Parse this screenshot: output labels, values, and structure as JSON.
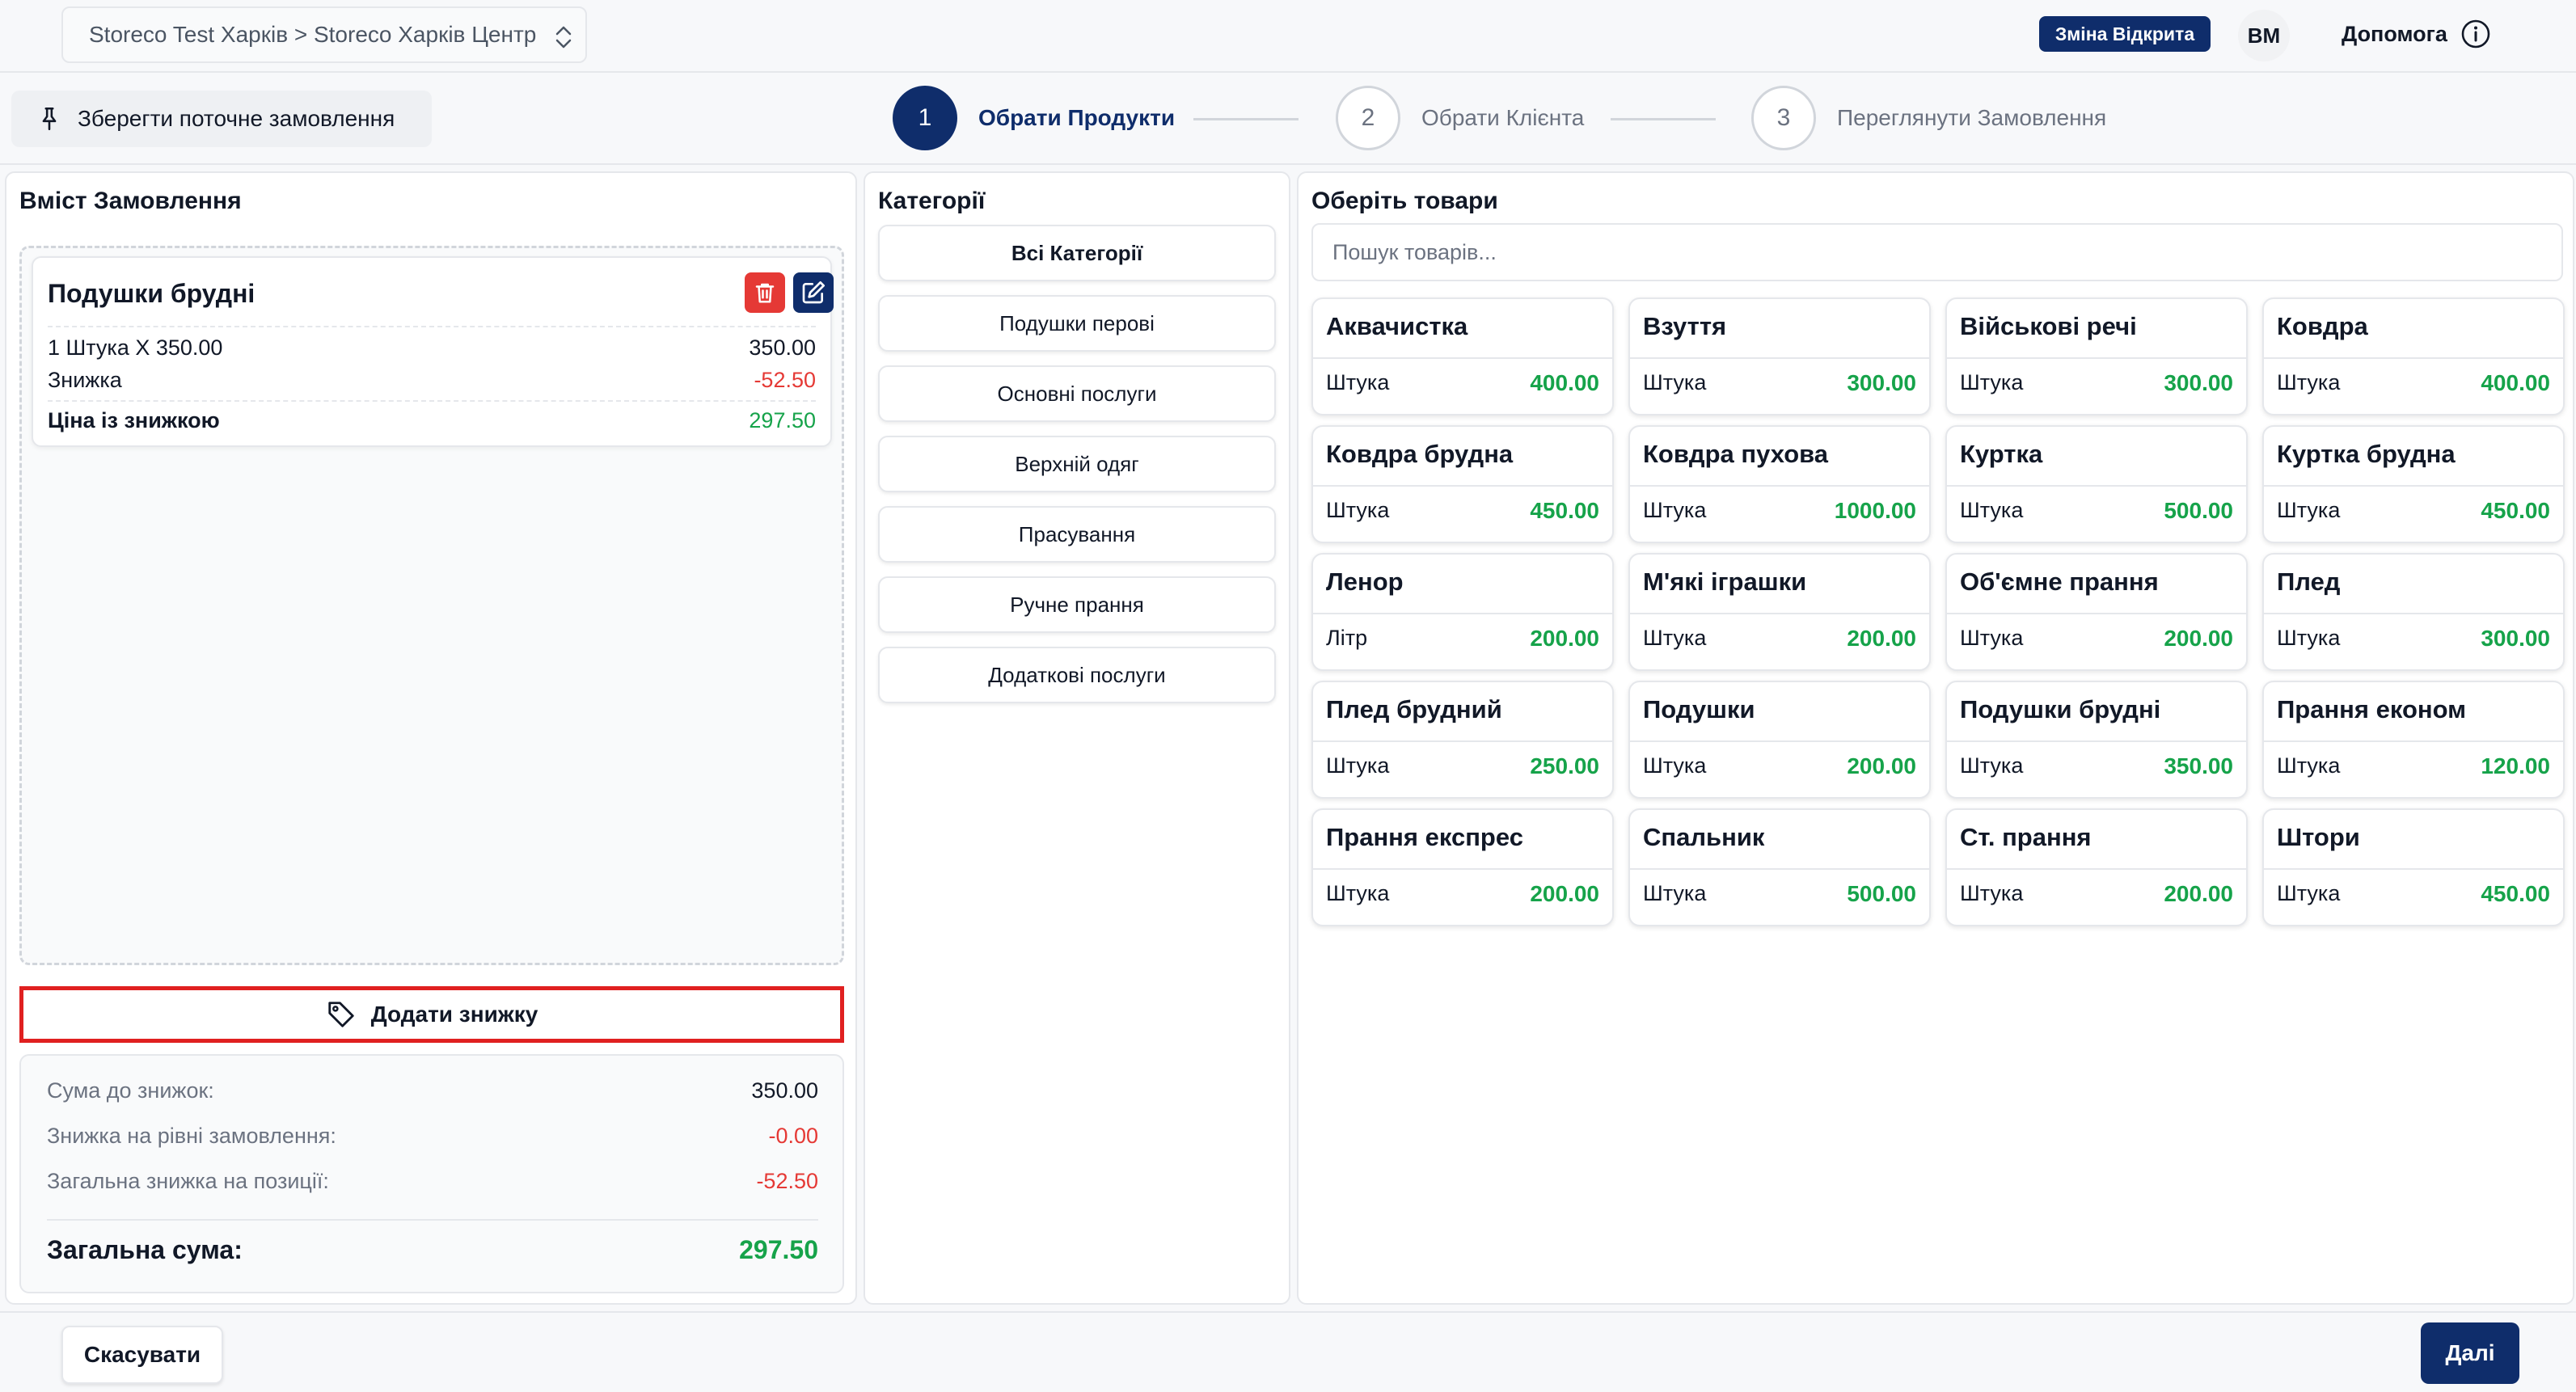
{
  "header": {
    "store_path": "Storeco Test Харків > Storeco Харків Центр",
    "shift_badge": "Зміна Відкрита",
    "avatar_initials": "ВМ",
    "help_label": "Допомога"
  },
  "toolbar": {
    "save_order_label": "Зберегти поточне замовлення"
  },
  "steps": [
    {
      "number": "1",
      "label": "Обрати Продукти",
      "active": true
    },
    {
      "number": "2",
      "label": "Обрати Клієнта",
      "active": false
    },
    {
      "number": "3",
      "label": "Переглянути Замовлення",
      "active": false
    }
  ],
  "order": {
    "title": "Вміст Замовлення",
    "item": {
      "name": "Подушки брудні",
      "qty_line": "1 Штука X 350.00",
      "qty_total": "350.00",
      "discount_label": "Знижка",
      "discount_value": "-52.50",
      "discounted_label": "Ціна із знижкою",
      "discounted_value": "297.50"
    },
    "add_discount_label": "Додати знижку",
    "summary": {
      "subtotal_label": "Сума до знижок:",
      "subtotal_value": "350.00",
      "order_discount_label": "Знижка на рівні замовлення:",
      "order_discount_value": "-0.00",
      "item_discount_label": "Загальна знижка на позиції:",
      "item_discount_value": "-52.50",
      "total_label": "Загальна сума:",
      "total_value": "297.50"
    }
  },
  "categories": {
    "title": "Категорії",
    "items": [
      "Всі Категорії",
      "Подушки перові",
      "Основні послуги",
      "Верхній одяг",
      "Прасування",
      "Ручне прання",
      "Додаткові послуги"
    ]
  },
  "products": {
    "title": "Оберіть товари",
    "search_placeholder": "Пошук товарів...",
    "items": [
      {
        "name": "Аквачистка",
        "unit": "Штука",
        "price": "400.00"
      },
      {
        "name": "Взуття",
        "unit": "Штука",
        "price": "300.00"
      },
      {
        "name": "Військові речі",
        "unit": "Штука",
        "price": "300.00"
      },
      {
        "name": "Ковдра",
        "unit": "Штука",
        "price": "400.00"
      },
      {
        "name": "Ковдра брудна",
        "unit": "Штука",
        "price": "450.00"
      },
      {
        "name": "Ковдра пухова",
        "unit": "Штука",
        "price": "1000.00"
      },
      {
        "name": "Куртка",
        "unit": "Штука",
        "price": "500.00"
      },
      {
        "name": "Куртка брудна",
        "unit": "Штука",
        "price": "450.00"
      },
      {
        "name": "Ленор",
        "unit": "Літр",
        "price": "200.00"
      },
      {
        "name": "М'які іграшки",
        "unit": "Штука",
        "price": "200.00"
      },
      {
        "name": "Об'ємне прання",
        "unit": "Штука",
        "price": "200.00"
      },
      {
        "name": "Плед",
        "unit": "Штука",
        "price": "300.00"
      },
      {
        "name": "Плед брудний",
        "unit": "Штука",
        "price": "250.00"
      },
      {
        "name": "Подушки",
        "unit": "Штука",
        "price": "200.00"
      },
      {
        "name": "Подушки брудні",
        "unit": "Штука",
        "price": "350.00"
      },
      {
        "name": "Прання економ",
        "unit": "Штука",
        "price": "120.00"
      },
      {
        "name": "Прання експрес",
        "unit": "Штука",
        "price": "200.00"
      },
      {
        "name": "Спальник",
        "unit": "Штука",
        "price": "500.00"
      },
      {
        "name": "Ст. прання",
        "unit": "Штука",
        "price": "200.00"
      },
      {
        "name": "Штори",
        "unit": "Штука",
        "price": "450.00"
      }
    ]
  },
  "footer": {
    "cancel_label": "Скасувати",
    "next_label": "Далі"
  },
  "colors": {
    "primary": "#0f2d6b",
    "price_green": "#16a34a",
    "discount_red": "#e53935",
    "highlight_border": "#e02020"
  }
}
